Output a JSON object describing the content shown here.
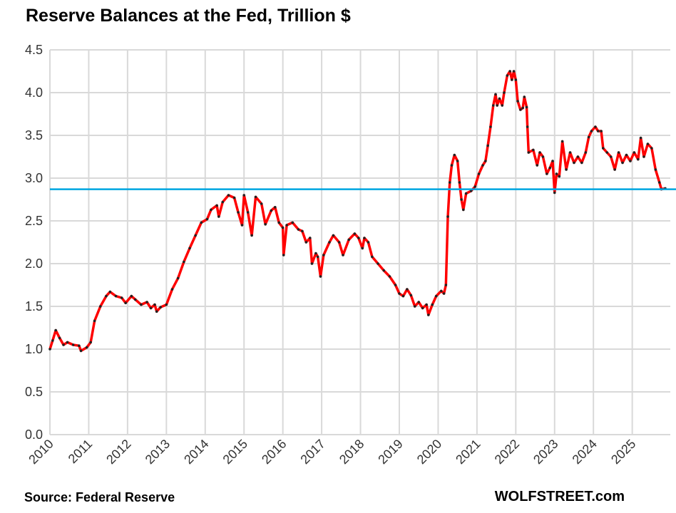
{
  "chart_data": {
    "type": "line",
    "title": "Reserve Balances at the Fed, Trillion $",
    "xlabel": "",
    "ylabel": "",
    "xlim": [
      2010,
      2025.98
    ],
    "ylim": [
      0,
      4.5
    ],
    "grid": true,
    "x_ticks": [
      "2010",
      "2011",
      "2012",
      "2013",
      "2014",
      "2015",
      "2016",
      "2017",
      "2018",
      "2019",
      "2020",
      "2021",
      "2022",
      "2023",
      "2024",
      "2025"
    ],
    "y_ticks": [
      "0.0",
      "0.5",
      "1.0",
      "1.5",
      "2.0",
      "2.5",
      "3.0",
      "3.5",
      "4.0",
      "4.5"
    ],
    "series": [
      {
        "name": "Reserve Balances",
        "color": "#ff0000",
        "marker_color": "#222222",
        "points": [
          [
            2010.0,
            1.0
          ],
          [
            2010.07,
            1.1
          ],
          [
            2010.15,
            1.22
          ],
          [
            2010.25,
            1.13
          ],
          [
            2010.35,
            1.05
          ],
          [
            2010.45,
            1.08
          ],
          [
            2010.6,
            1.05
          ],
          [
            2010.75,
            1.04
          ],
          [
            2010.8,
            0.98
          ],
          [
            2010.95,
            1.02
          ],
          [
            2011.05,
            1.08
          ],
          [
            2011.15,
            1.33
          ],
          [
            2011.3,
            1.5
          ],
          [
            2011.45,
            1.62
          ],
          [
            2011.55,
            1.67
          ],
          [
            2011.7,
            1.62
          ],
          [
            2011.85,
            1.6
          ],
          [
            2011.95,
            1.54
          ],
          [
            2012.1,
            1.62
          ],
          [
            2012.2,
            1.58
          ],
          [
            2012.35,
            1.52
          ],
          [
            2012.5,
            1.55
          ],
          [
            2012.6,
            1.48
          ],
          [
            2012.7,
            1.52
          ],
          [
            2012.75,
            1.44
          ],
          [
            2012.85,
            1.49
          ],
          [
            2013.0,
            1.52
          ],
          [
            2013.15,
            1.7
          ],
          [
            2013.3,
            1.83
          ],
          [
            2013.45,
            2.02
          ],
          [
            2013.6,
            2.18
          ],
          [
            2013.75,
            2.33
          ],
          [
            2013.9,
            2.48
          ],
          [
            2014.05,
            2.52
          ],
          [
            2014.15,
            2.63
          ],
          [
            2014.3,
            2.68
          ],
          [
            2014.35,
            2.55
          ],
          [
            2014.45,
            2.72
          ],
          [
            2014.6,
            2.8
          ],
          [
            2014.75,
            2.77
          ],
          [
            2014.85,
            2.6
          ],
          [
            2014.95,
            2.45
          ],
          [
            2015.0,
            2.8
          ],
          [
            2015.1,
            2.6
          ],
          [
            2015.2,
            2.33
          ],
          [
            2015.3,
            2.78
          ],
          [
            2015.45,
            2.7
          ],
          [
            2015.55,
            2.46
          ],
          [
            2015.7,
            2.62
          ],
          [
            2015.8,
            2.66
          ],
          [
            2015.9,
            2.48
          ],
          [
            2016.0,
            2.42
          ],
          [
            2016.02,
            2.1
          ],
          [
            2016.1,
            2.45
          ],
          [
            2016.25,
            2.48
          ],
          [
            2016.4,
            2.4
          ],
          [
            2016.5,
            2.38
          ],
          [
            2016.6,
            2.25
          ],
          [
            2016.7,
            2.3
          ],
          [
            2016.75,
            2.0
          ],
          [
            2016.85,
            2.12
          ],
          [
            2016.9,
            2.08
          ],
          [
            2016.97,
            1.85
          ],
          [
            2017.05,
            2.1
          ],
          [
            2017.2,
            2.25
          ],
          [
            2017.3,
            2.33
          ],
          [
            2017.45,
            2.25
          ],
          [
            2017.55,
            2.1
          ],
          [
            2017.7,
            2.28
          ],
          [
            2017.85,
            2.35
          ],
          [
            2017.95,
            2.3
          ],
          [
            2018.05,
            2.18
          ],
          [
            2018.1,
            2.3
          ],
          [
            2018.2,
            2.25
          ],
          [
            2018.3,
            2.08
          ],
          [
            2018.45,
            2.0
          ],
          [
            2018.6,
            1.92
          ],
          [
            2018.75,
            1.85
          ],
          [
            2018.9,
            1.75
          ],
          [
            2019.0,
            1.65
          ],
          [
            2019.1,
            1.62
          ],
          [
            2019.2,
            1.7
          ],
          [
            2019.3,
            1.63
          ],
          [
            2019.4,
            1.5
          ],
          [
            2019.5,
            1.55
          ],
          [
            2019.6,
            1.48
          ],
          [
            2019.7,
            1.52
          ],
          [
            2019.75,
            1.4
          ],
          [
            2019.85,
            1.52
          ],
          [
            2019.95,
            1.62
          ],
          [
            2020.08,
            1.68
          ],
          [
            2020.15,
            1.65
          ],
          [
            2020.2,
            1.75
          ],
          [
            2020.25,
            2.55
          ],
          [
            2020.3,
            2.95
          ],
          [
            2020.35,
            3.15
          ],
          [
            2020.42,
            3.27
          ],
          [
            2020.5,
            3.2
          ],
          [
            2020.55,
            2.95
          ],
          [
            2020.6,
            2.75
          ],
          [
            2020.65,
            2.63
          ],
          [
            2020.72,
            2.82
          ],
          [
            2020.85,
            2.85
          ],
          [
            2020.95,
            2.9
          ],
          [
            2021.05,
            3.05
          ],
          [
            2021.15,
            3.15
          ],
          [
            2021.22,
            3.2
          ],
          [
            2021.28,
            3.38
          ],
          [
            2021.35,
            3.6
          ],
          [
            2021.42,
            3.85
          ],
          [
            2021.48,
            3.98
          ],
          [
            2021.52,
            3.85
          ],
          [
            2021.58,
            3.93
          ],
          [
            2021.65,
            3.85
          ],
          [
            2021.7,
            4.0
          ],
          [
            2021.78,
            4.2
          ],
          [
            2021.85,
            4.25
          ],
          [
            2021.9,
            4.15
          ],
          [
            2021.95,
            4.25
          ],
          [
            2022.0,
            4.15
          ],
          [
            2022.05,
            3.9
          ],
          [
            2022.12,
            3.8
          ],
          [
            2022.18,
            3.82
          ],
          [
            2022.22,
            3.95
          ],
          [
            2022.28,
            3.83
          ],
          [
            2022.3,
            3.6
          ],
          [
            2022.33,
            3.3
          ],
          [
            2022.45,
            3.33
          ],
          [
            2022.55,
            3.15
          ],
          [
            2022.62,
            3.3
          ],
          [
            2022.7,
            3.25
          ],
          [
            2022.8,
            3.05
          ],
          [
            2022.88,
            3.12
          ],
          [
            2022.95,
            3.2
          ],
          [
            2023.0,
            2.83
          ],
          [
            2023.05,
            3.05
          ],
          [
            2023.12,
            3.02
          ],
          [
            2023.2,
            3.43
          ],
          [
            2023.3,
            3.1
          ],
          [
            2023.4,
            3.3
          ],
          [
            2023.5,
            3.18
          ],
          [
            2023.6,
            3.25
          ],
          [
            2023.7,
            3.18
          ],
          [
            2023.8,
            3.3
          ],
          [
            2023.88,
            3.48
          ],
          [
            2023.95,
            3.55
          ],
          [
            2024.05,
            3.6
          ],
          [
            2024.12,
            3.55
          ],
          [
            2024.2,
            3.55
          ],
          [
            2024.25,
            3.35
          ],
          [
            2024.35,
            3.3
          ],
          [
            2024.45,
            3.25
          ],
          [
            2024.55,
            3.1
          ],
          [
            2024.65,
            3.3
          ],
          [
            2024.75,
            3.18
          ],
          [
            2024.85,
            3.27
          ],
          [
            2024.95,
            3.2
          ],
          [
            2025.05,
            3.3
          ],
          [
            2025.15,
            3.22
          ],
          [
            2025.22,
            3.47
          ],
          [
            2025.3,
            3.25
          ],
          [
            2025.4,
            3.4
          ],
          [
            2025.5,
            3.35
          ],
          [
            2025.6,
            3.1
          ],
          [
            2025.7,
            2.95
          ],
          [
            2025.75,
            2.87
          ],
          [
            2025.85,
            2.88
          ]
        ]
      }
    ],
    "reference_line": {
      "value": 2.87,
      "color": "#00a6e0"
    }
  },
  "source": "Source: Federal Reserve",
  "brand": "WOLFSTREET.com"
}
